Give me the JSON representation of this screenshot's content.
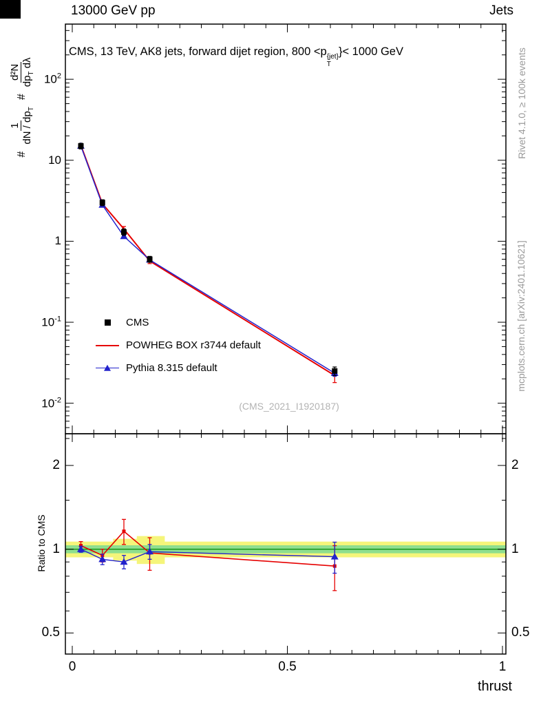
{
  "header": {
    "left": "13000 GeV pp",
    "right": "Jets"
  },
  "title": {
    "prefix": "CMS, 13 TeV, AK8 jets, forward dijet region, 800 <p",
    "sup": "{jet}",
    "sub": "T",
    "suffix": "}< 1000 GeV"
  },
  "ylabel_main": {
    "hash1": "#",
    "f1num": "1",
    "f1den": "dN / dp",
    "f1densub": "T",
    "hash2": "#",
    "f2num": "d²N",
    "f2den1": "dp",
    "f2densub": "T",
    "f2den2": " dλ"
  },
  "ratio_ylabel": "Ratio to CMS",
  "xlabel": "thrust",
  "notes": {
    "rivet": "Rivet 4.1.0, ≥ 100k events",
    "mcplots": "mcplots.cern.ch [arXiv:2401.10621]"
  },
  "watermark": "(CMS_2021_I1920187)",
  "legend": [
    {
      "label": "CMS",
      "marker": "square",
      "color": "#000000"
    },
    {
      "label": "POWHEG BOX r3744 default",
      "marker": "line",
      "color": "#e60000"
    },
    {
      "label": "Pythia 8.315 default",
      "marker": "triangle-line",
      "color": "#2222cc"
    }
  ],
  "chart_data": [
    {
      "type": "line",
      "title": "CMS, 13 TeV, AK8 jets, forward dijet region, 800 < pT{jet} < 1000 GeV",
      "xlabel": "thrust",
      "ylabel": "1/(dN/dpT) d2N/(dpT dlambda)",
      "ylog": true,
      "xlim": [
        -0.016,
        1.008
      ],
      "ylim": [
        0.0042,
        480
      ],
      "legend_position": "left-middle",
      "grid": false,
      "x": [
        0.02,
        0.07,
        0.12,
        0.18,
        0.61
      ],
      "xticks": [
        {
          "v": 0,
          "label": "0"
        },
        {
          "v": 0.5,
          "label": "0.5"
        },
        {
          "v": 1,
          "label": "1"
        }
      ],
      "yticks": [
        {
          "v": 100,
          "base": "10",
          "exp": "2"
        },
        {
          "v": 10,
          "base": "10",
          "exp": ""
        },
        {
          "v": 1,
          "base": "1",
          "exp": ""
        },
        {
          "v": 0.1,
          "base": "10",
          "exp": "-1"
        },
        {
          "v": 0.01,
          "base": "10",
          "exp": "-2"
        }
      ],
      "series": [
        {
          "name": "CMS",
          "color": "#000000",
          "marker": "square",
          "line": false,
          "values": [
            15,
            3.0,
            1.3,
            0.6,
            0.025
          ],
          "yerr": [
            1.2,
            0.25,
            0.12,
            0.05,
            0.003
          ]
        },
        {
          "name": "POWHEG BOX r3744 default",
          "color": "#e60000",
          "marker": "none",
          "line": true,
          "width": 2,
          "values": [
            15.3,
            2.9,
            1.42,
            0.57,
            0.022
          ],
          "yerr": [
            0.3,
            0.1,
            0.1,
            0.04,
            0.004
          ]
        },
        {
          "name": "Pythia 8.315 default",
          "color": "#2222cc",
          "marker": "triangle",
          "line": true,
          "width": 1.5,
          "values": [
            15.0,
            2.8,
            1.15,
            0.59,
            0.0235
          ],
          "yerr": [
            0.2,
            0.08,
            0.05,
            0.03,
            0.002
          ]
        }
      ]
    },
    {
      "type": "ratio",
      "ylabel": "Ratio to CMS",
      "ylog": true,
      "ylim": [
        0.42,
        2.6
      ],
      "reference_line": 1,
      "yticks": [
        {
          "v": 2,
          "label": "2"
        },
        {
          "v": 1,
          "label": "1"
        },
        {
          "v": 0.5,
          "label": "0.5"
        }
      ],
      "bands": [
        {
          "x0": -0.016,
          "x1": 1.008,
          "lo": 0.935,
          "hi": 1.065,
          "color": "#f5f57a"
        },
        {
          "x0": 0.095,
          "x1": 0.15,
          "lo": 0.91,
          "hi": 1.09,
          "color": "#f5f57a"
        },
        {
          "x0": 0.15,
          "x1": 0.215,
          "lo": 0.885,
          "hi": 1.115,
          "color": "#f5f57a"
        },
        {
          "x0": -0.016,
          "x1": 1.008,
          "lo": 0.967,
          "hi": 1.033,
          "color": "#8ede8e"
        }
      ],
      "x": [
        0.02,
        0.07,
        0.12,
        0.18,
        0.61
      ],
      "series": [
        {
          "name": "POWHEG BOX r3744 default",
          "color": "#e60000",
          "marker": "small-square",
          "line": true,
          "width": 1.6,
          "values": [
            1.03,
            0.95,
            1.16,
            0.97,
            0.87
          ],
          "yerr": [
            0.035,
            0.05,
            0.12,
            0.13,
            0.16
          ]
        },
        {
          "name": "Pythia 8.315 default",
          "color": "#2222cc",
          "marker": "triangle",
          "line": true,
          "width": 1.4,
          "values": [
            1.0,
            0.92,
            0.9,
            0.98,
            0.94
          ],
          "yerr": [
            0.025,
            0.04,
            0.05,
            0.06,
            0.12
          ]
        }
      ]
    }
  ]
}
